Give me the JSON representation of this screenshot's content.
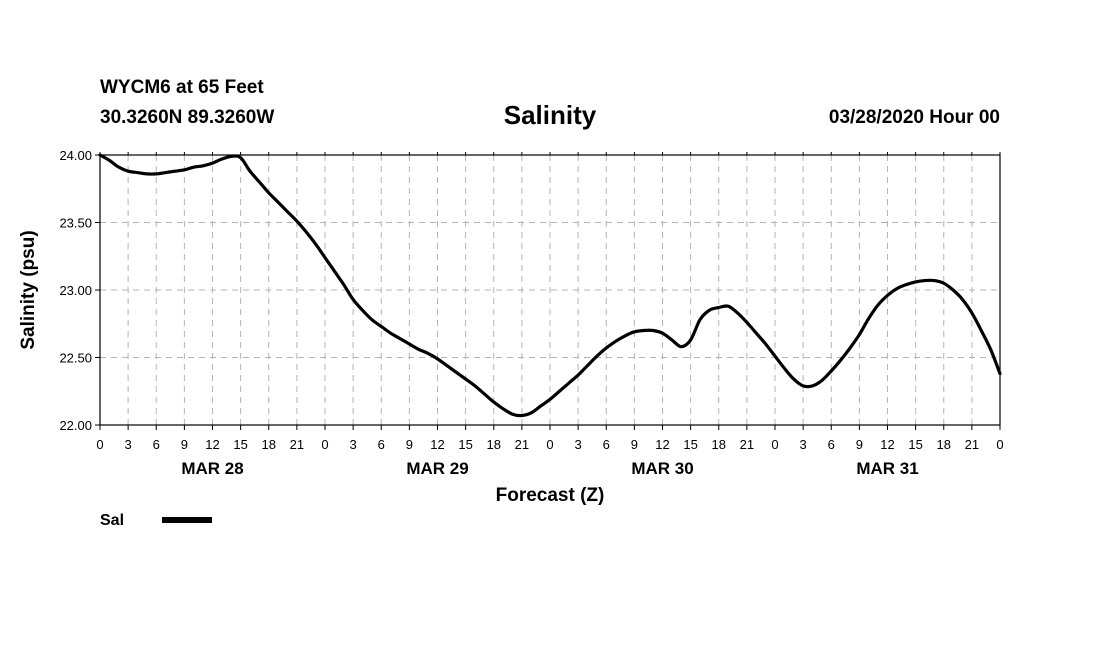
{
  "header": {
    "station": "WYCM6 at 65 Feet",
    "coords": "30.3260N 89.3260W",
    "run": "03/28/2020 Hour 00"
  },
  "chart_data": {
    "type": "line",
    "title": "Salinity",
    "xlabel": "Forecast (Z)",
    "ylabel": "Salinity (psu)",
    "xlim": [
      0,
      96
    ],
    "ylim": [
      22.0,
      24.0
    ],
    "y_ticks": [
      "22.00",
      "22.50",
      "23.00",
      "23.50",
      "24.00"
    ],
    "x_tick_step_hours": 3,
    "x_tick_labels": [
      "0",
      "3",
      "6",
      "9",
      "12",
      "15",
      "18",
      "21",
      "0",
      "3",
      "6",
      "9",
      "12",
      "15",
      "18",
      "21",
      "0",
      "3",
      "6",
      "9",
      "12",
      "15",
      "18",
      "21",
      "0",
      "3",
      "6",
      "9",
      "12",
      "15",
      "18",
      "21",
      "0"
    ],
    "day_labels": [
      {
        "label": "MAR 28",
        "center_hour": 12
      },
      {
        "label": "MAR 29",
        "center_hour": 36
      },
      {
        "label": "MAR 30",
        "center_hour": 60
      },
      {
        "label": "MAR 31",
        "center_hour": 84
      }
    ],
    "grid": true,
    "legend": [
      {
        "name": "Sal",
        "color": "#000000",
        "position": "bottom-left"
      }
    ],
    "series": [
      {
        "name": "Sal",
        "color": "#000000",
        "x": [
          0,
          1,
          2,
          3,
          4,
          5,
          6,
          7,
          8,
          9,
          10,
          11,
          12,
          13,
          14,
          15,
          16,
          17,
          18,
          19,
          20,
          21,
          22,
          23,
          24,
          25,
          26,
          27,
          28,
          29,
          30,
          31,
          32,
          33,
          34,
          35,
          36,
          37,
          38,
          39,
          40,
          41,
          42,
          43,
          44,
          45,
          46,
          47,
          48,
          49,
          50,
          51,
          52,
          53,
          54,
          55,
          56,
          57,
          58,
          59,
          60,
          61,
          62,
          63,
          64,
          65,
          66,
          67,
          68,
          69,
          70,
          71,
          72,
          73,
          74,
          75,
          76,
          77,
          78,
          79,
          80,
          81,
          82,
          83,
          84,
          85,
          86,
          87,
          88,
          89,
          90,
          91,
          92,
          93,
          94,
          95,
          96
        ],
        "values": [
          24.0,
          23.96,
          23.91,
          23.88,
          23.87,
          23.86,
          23.86,
          23.87,
          23.88,
          23.89,
          23.91,
          23.92,
          23.94,
          23.97,
          23.99,
          23.98,
          23.88,
          23.8,
          23.72,
          23.65,
          23.58,
          23.51,
          23.43,
          23.34,
          23.24,
          23.14,
          23.04,
          22.93,
          22.85,
          22.78,
          22.73,
          22.68,
          22.64,
          22.6,
          22.56,
          22.53,
          22.49,
          22.44,
          22.39,
          22.34,
          22.29,
          22.23,
          22.17,
          22.12,
          22.08,
          22.07,
          22.09,
          22.14,
          22.19,
          22.25,
          22.31,
          22.37,
          22.44,
          22.51,
          22.57,
          22.62,
          22.66,
          22.69,
          22.7,
          22.7,
          22.68,
          22.63,
          22.58,
          22.63,
          22.78,
          22.85,
          22.87,
          22.88,
          22.83,
          22.76,
          22.68,
          22.6,
          22.51,
          22.42,
          22.34,
          22.29,
          22.29,
          22.33,
          22.4,
          22.48,
          22.57,
          22.67,
          22.79,
          22.89,
          22.96,
          23.01,
          23.04,
          23.06,
          23.07,
          23.07,
          23.05,
          23.0,
          22.93,
          22.83,
          22.7,
          22.56,
          22.38
        ]
      }
    ]
  }
}
